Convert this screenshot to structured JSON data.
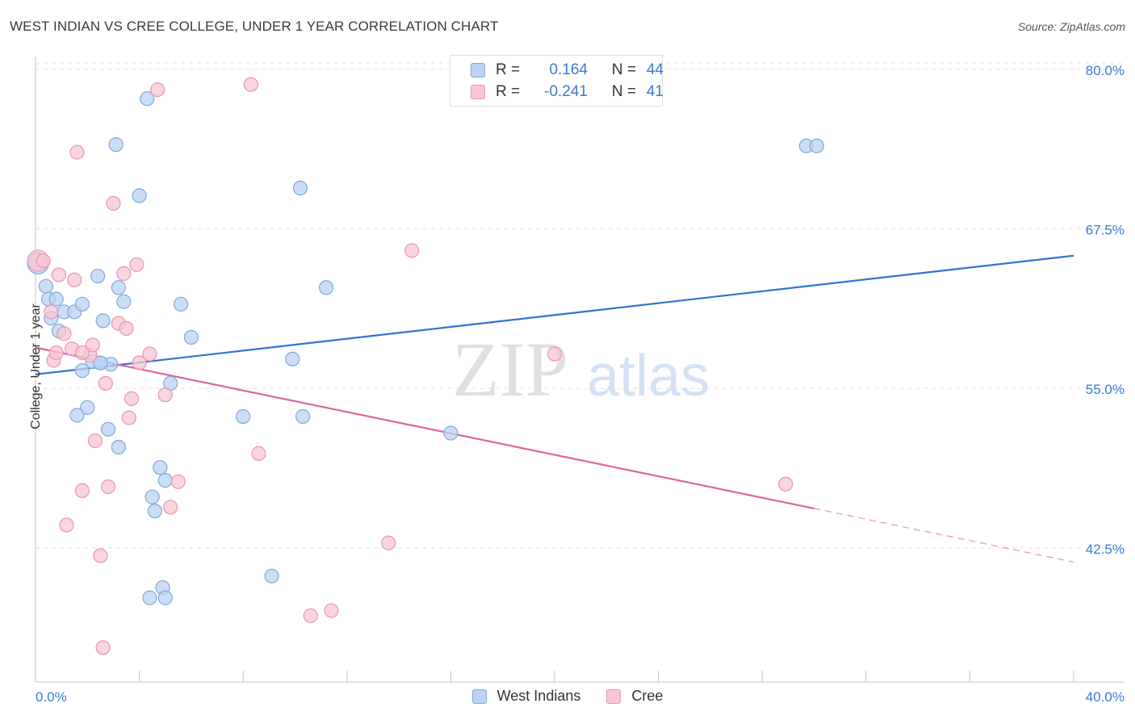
{
  "title": "WEST INDIAN VS CREE COLLEGE, UNDER 1 YEAR CORRELATION CHART",
  "source": "Source: ZipAtlas.com",
  "watermark": {
    "zip": "ZIP",
    "atlas": "atlas"
  },
  "legend": {
    "row1": {
      "r_label": "R =",
      "r_value": "0.164",
      "n_label": "N =",
      "n_value": "44"
    },
    "row2": {
      "r_label": "R =",
      "r_value": "-0.241",
      "n_label": "N =",
      "n_value": "41"
    }
  },
  "bottom_legend": {
    "blue": "West Indians",
    "pink": "Cree"
  },
  "colors": {
    "blue_fill": "#b9d3f3",
    "blue_stroke": "#7fa9dd",
    "blue_line": "#2f74d0",
    "pink_fill": "#f8c6d6",
    "pink_stroke": "#e897b2",
    "pink_line": "#e0649a",
    "axis_text": "#3a7bd5"
  },
  "chart_data": {
    "type": "scatter",
    "title": "WEST INDIAN VS CREE COLLEGE, UNDER 1 YEAR CORRELATION CHART",
    "xlabel": "",
    "ylabel": "College, Under 1 year",
    "xlim": [
      0,
      40
    ],
    "ylim": [
      32,
      81
    ],
    "x_tick_labels": [
      "0.0%",
      "40.0%"
    ],
    "y_ticks": [
      42.5,
      55.0,
      67.5,
      80.0
    ],
    "y_tick_labels": [
      "42.5%",
      "55.0%",
      "67.5%",
      "80.0%"
    ],
    "grid": true,
    "legend_position": "top-center",
    "series": [
      {
        "name": "West Indians",
        "r": 0.164,
        "n": 44,
        "trend": {
          "x": [
            0,
            40
          ],
          "y": [
            56.1,
            65.4
          ]
        },
        "points": [
          [
            0.1,
            64.8,
            "big"
          ],
          [
            0.4,
            63.0
          ],
          [
            0.5,
            62.0
          ],
          [
            0.8,
            62.0
          ],
          [
            0.6,
            60.5
          ],
          [
            0.9,
            59.5
          ],
          [
            1.1,
            61.0
          ],
          [
            1.5,
            61.0
          ],
          [
            1.8,
            61.6
          ],
          [
            2.4,
            63.8
          ],
          [
            2.6,
            60.3
          ],
          [
            3.2,
            62.9
          ],
          [
            3.4,
            61.8
          ],
          [
            3.1,
            74.1
          ],
          [
            4.3,
            77.7
          ],
          [
            4.0,
            70.1
          ],
          [
            1.8,
            56.4
          ],
          [
            2.2,
            57.1
          ],
          [
            2.5,
            57.0
          ],
          [
            2.9,
            56.9
          ],
          [
            2.0,
            53.5
          ],
          [
            1.6,
            52.9
          ],
          [
            2.8,
            51.8
          ],
          [
            3.2,
            50.4
          ],
          [
            4.5,
            46.5
          ],
          [
            4.6,
            45.4
          ],
          [
            4.8,
            48.8
          ],
          [
            5.0,
            47.8
          ],
          [
            5.2,
            55.4
          ],
          [
            5.6,
            61.6
          ],
          [
            6.0,
            59.0
          ],
          [
            8.0,
            52.8
          ],
          [
            9.1,
            40.3
          ],
          [
            9.9,
            57.3
          ],
          [
            10.2,
            70.7
          ],
          [
            10.3,
            52.8
          ],
          [
            11.2,
            62.9
          ],
          [
            16.0,
            51.5
          ],
          [
            4.4,
            38.6
          ],
          [
            4.9,
            39.4
          ],
          [
            5.0,
            38.6
          ],
          [
            29.7,
            74.0
          ],
          [
            30.1,
            74.0
          ],
          [
            2.5,
            57.0
          ]
        ]
      },
      {
        "name": "Cree",
        "r": -0.241,
        "n": 41,
        "trend": {
          "x": [
            0,
            30
          ],
          "y": [
            58.2,
            45.6
          ]
        },
        "trend_dashed": {
          "x": [
            30,
            40
          ],
          "y": [
            45.6,
            41.4
          ]
        },
        "points": [
          [
            0.1,
            65.0,
            "big"
          ],
          [
            0.3,
            65.0
          ],
          [
            0.6,
            61.0
          ],
          [
            0.7,
            57.2
          ],
          [
            0.8,
            57.8
          ],
          [
            0.9,
            63.9
          ],
          [
            1.1,
            59.3
          ],
          [
            1.4,
            58.1
          ],
          [
            1.5,
            63.5
          ],
          [
            1.6,
            73.5
          ],
          [
            2.1,
            57.6
          ],
          [
            2.2,
            58.4
          ],
          [
            2.7,
            55.4
          ],
          [
            2.3,
            50.9
          ],
          [
            1.8,
            47.0
          ],
          [
            1.2,
            44.3
          ],
          [
            2.5,
            41.9
          ],
          [
            2.6,
            34.7
          ],
          [
            2.8,
            47.3
          ],
          [
            3.0,
            69.5
          ],
          [
            3.2,
            60.1
          ],
          [
            3.4,
            64.0
          ],
          [
            3.5,
            59.7
          ],
          [
            3.6,
            52.7
          ],
          [
            3.7,
            54.2
          ],
          [
            3.9,
            64.7
          ],
          [
            4.0,
            57.0
          ],
          [
            4.4,
            57.7
          ],
          [
            4.7,
            78.4
          ],
          [
            5.0,
            54.5
          ],
          [
            5.2,
            45.7
          ],
          [
            5.5,
            47.7
          ],
          [
            8.3,
            78.8
          ],
          [
            8.6,
            49.9
          ],
          [
            10.6,
            37.2
          ],
          [
            11.4,
            37.6
          ],
          [
            13.6,
            42.9
          ],
          [
            14.5,
            65.8
          ],
          [
            20.0,
            57.7
          ],
          [
            28.9,
            47.5
          ],
          [
            1.8,
            57.8
          ]
        ]
      }
    ]
  }
}
